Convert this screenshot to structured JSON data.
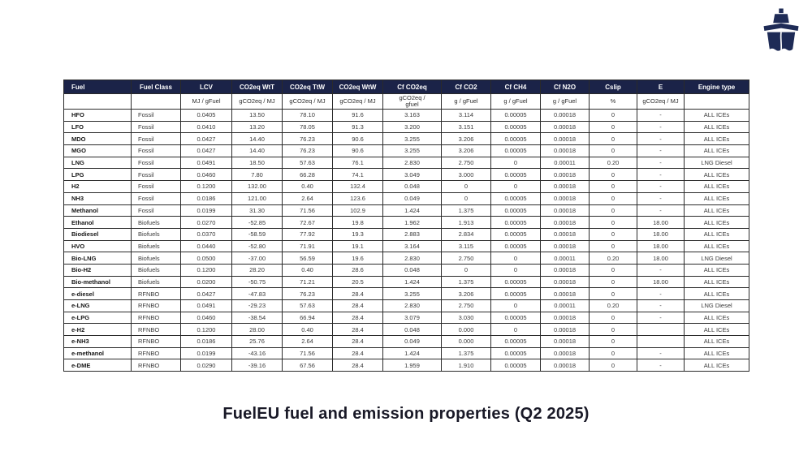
{
  "title": "FuelEU fuel and emission properties (Q2 2025)",
  "logo": {
    "icon": "ship-icon",
    "color": "#1e2b56"
  },
  "colors": {
    "table_header_bg": "#1b2348",
    "table_header_text": "#ffffff",
    "border": "#2a2a2a",
    "title_text": "#191927"
  },
  "table": {
    "headers": [
      "Fuel",
      "Fuel Class",
      "LCV",
      "CO2eq WtT",
      "CO2eq TtW",
      "CO2eq WtW",
      "Cf CO2eq",
      "Cf CO2",
      "Cf CH4",
      "Cf N2O",
      "Cslip",
      "E",
      "Engine type"
    ],
    "units": [
      "",
      "",
      "MJ / gFuel",
      "gCO2eq / MJ",
      "gCO2eq / MJ",
      "gCO2eq / MJ",
      "gCO2eq /\ngfuel",
      "g / gFuel",
      "g / gFuel",
      "g / gFuel",
      "%",
      "gCO2eq / MJ",
      ""
    ],
    "rows": [
      [
        "HFO",
        "Fossil",
        "0.0405",
        "13.50",
        "78.10",
        "91.6",
        "3.163",
        "3.114",
        "0.00005",
        "0.00018",
        "0",
        "-",
        "ALL ICEs"
      ],
      [
        "LFO",
        "Fossil",
        "0.0410",
        "13.20",
        "78.05",
        "91.3",
        "3.200",
        "3.151",
        "0.00005",
        "0.00018",
        "0",
        "-",
        "ALL ICEs"
      ],
      [
        "MDO",
        "Fossil",
        "0.0427",
        "14.40",
        "76.23",
        "90.6",
        "3.255",
        "3.206",
        "0.00005",
        "0.00018",
        "0",
        "-",
        "ALL ICEs"
      ],
      [
        "MGO",
        "Fossil",
        "0.0427",
        "14.40",
        "76.23",
        "90.6",
        "3.255",
        "3.206",
        "0.00005",
        "0.00018",
        "0",
        "-",
        "ALL ICEs"
      ],
      [
        "LNG",
        "Fossil",
        "0.0491",
        "18.50",
        "57.63",
        "76.1",
        "2.830",
        "2.750",
        "0",
        "0.00011",
        "0.20",
        "-",
        "LNG Diesel"
      ],
      [
        "LPG",
        "Fossil",
        "0.0460",
        "7.80",
        "66.28",
        "74.1",
        "3.049",
        "3.000",
        "0.00005",
        "0.00018",
        "0",
        "-",
        "ALL ICEs"
      ],
      [
        "H2",
        "Fossil",
        "0.1200",
        "132.00",
        "0.40",
        "132.4",
        "0.048",
        "0",
        "0",
        "0.00018",
        "0",
        "-",
        "ALL ICEs"
      ],
      [
        "NH3",
        "Fossil",
        "0.0186",
        "121.00",
        "2.64",
        "123.6",
        "0.049",
        "0",
        "0.00005",
        "0.00018",
        "0",
        "-",
        "ALL ICEs"
      ],
      [
        "Methanol",
        "Fossil",
        "0.0199",
        "31.30",
        "71.56",
        "102.9",
        "1.424",
        "1.375",
        "0.00005",
        "0.00018",
        "0",
        "-",
        "ALL ICEs"
      ],
      [
        "Ethanol",
        "Biofuels",
        "0.0270",
        "-52.85",
        "72.67",
        "19.8",
        "1.962",
        "1.913",
        "0.00005",
        "0.00018",
        "0",
        "18.00",
        "ALL ICEs"
      ],
      [
        "Biodiesel",
        "Biofuels",
        "0.0370",
        "-58.59",
        "77.92",
        "19.3",
        "2.883",
        "2.834",
        "0.00005",
        "0.00018",
        "0",
        "18.00",
        "ALL ICEs"
      ],
      [
        "HVO",
        "Biofuels",
        "0.0440",
        "-52.80",
        "71.91",
        "19.1",
        "3.164",
        "3.115",
        "0.00005",
        "0.00018",
        "0",
        "18.00",
        "ALL ICEs"
      ],
      [
        "Bio-LNG",
        "Biofuels",
        "0.0500",
        "-37.00",
        "56.59",
        "19.6",
        "2.830",
        "2.750",
        "0",
        "0.00011",
        "0.20",
        "18.00",
        "LNG Diesel"
      ],
      [
        "Bio-H2",
        "Biofuels",
        "0.1200",
        "28.20",
        "0.40",
        "28.6",
        "0.048",
        "0",
        "0",
        "0.00018",
        "0",
        "-",
        "ALL ICEs"
      ],
      [
        "Bio-methanol",
        "Biofuels",
        "0.0200",
        "-50.75",
        "71.21",
        "20.5",
        "1.424",
        "1.375",
        "0.00005",
        "0.00018",
        "0",
        "18.00",
        "ALL ICEs"
      ],
      [
        "e-diesel",
        "RFNBO",
        "0.0427",
        "-47.83",
        "76.23",
        "28.4",
        "3.255",
        "3.206",
        "0.00005",
        "0.00018",
        "0",
        "-",
        "ALL ICEs"
      ],
      [
        "e-LNG",
        "RFNBO",
        "0.0491",
        "-29.23",
        "57.63",
        "28.4",
        "2.830",
        "2.750",
        "0",
        "0.00011",
        "0.20",
        "-",
        "LNG Diesel"
      ],
      [
        "e-LPG",
        "RFNBO",
        "0.0460",
        "-38.54",
        "66.94",
        "28.4",
        "3.079",
        "3.030",
        "0.00005",
        "0.00018",
        "0",
        "-",
        "ALL ICEs"
      ],
      [
        "e-H2",
        "RFNBO",
        "0.1200",
        "28.00",
        "0.40",
        "28.4",
        "0.048",
        "0.000",
        "0",
        "0.00018",
        "0",
        "",
        "ALL ICEs"
      ],
      [
        "e-NH3",
        "RFNBO",
        "0.0186",
        "25.76",
        "2.64",
        "28.4",
        "0.049",
        "0.000",
        "0.00005",
        "0.00018",
        "0",
        "",
        "ALL ICEs"
      ],
      [
        "e-methanol",
        "RFNBO",
        "0.0199",
        "-43.16",
        "71.56",
        "28.4",
        "1.424",
        "1.375",
        "0.00005",
        "0.00018",
        "0",
        "-",
        "ALL ICEs"
      ],
      [
        "e-DME",
        "RFNBO",
        "0.0290",
        "-39.16",
        "67.56",
        "28.4",
        "1.959",
        "1.910",
        "0.00005",
        "0.00018",
        "0",
        "-",
        "ALL ICEs"
      ]
    ]
  }
}
